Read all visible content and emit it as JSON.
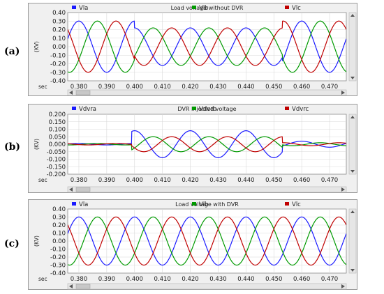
{
  "panel_labels": [
    "(a)",
    "(b)",
    "(c)"
  ],
  "x_axis_label": "sec",
  "chart_data": [
    {
      "type": "line",
      "title": "Load voltage without DVR",
      "ylabel": "(KV)",
      "xlabel": "sec",
      "xlim": [
        0.376,
        0.476
      ],
      "ylim": [
        -0.4,
        0.4
      ],
      "xticks": [
        "0.380",
        "0.390",
        "0.400",
        "0.410",
        "0.420",
        "0.430",
        "0.440",
        "0.450",
        "0.460",
        "0.470"
      ],
      "yticks": [
        "0.40",
        "0.30",
        "0.20",
        "0.10",
        "0.00",
        "-0.10",
        "-0.20",
        "-0.30",
        "-0.40"
      ],
      "frequency_hz": 50,
      "series": [
        {
          "name": "Vla",
          "color": "#1a1aff",
          "phase_deg": 90,
          "segments": [
            {
              "start": 0.376,
              "end": 0.4,
              "amp": 0.3
            },
            {
              "start": 0.4,
              "end": 0.453,
              "amp": 0.22
            },
            {
              "start": 0.453,
              "end": 0.476,
              "amp": 0.3
            }
          ]
        },
        {
          "name": "Vlb",
          "color": "#009a00",
          "phase_deg": -30,
          "segments": [
            {
              "start": 0.376,
              "end": 0.4,
              "amp": 0.3
            },
            {
              "start": 0.4,
              "end": 0.453,
              "amp": 0.22
            },
            {
              "start": 0.453,
              "end": 0.476,
              "amp": 0.3
            }
          ]
        },
        {
          "name": "Vlc",
          "color": "#c00000",
          "phase_deg": 210,
          "segments": [
            {
              "start": 0.376,
              "end": 0.4,
              "amp": 0.3
            },
            {
              "start": 0.4,
              "end": 0.453,
              "amp": 0.22
            },
            {
              "start": 0.453,
              "end": 0.476,
              "amp": 0.3
            }
          ]
        }
      ]
    },
    {
      "type": "line",
      "title": "DVR Injected voltage",
      "ylabel": "(KV)",
      "xlabel": "sec",
      "xlim": [
        0.376,
        0.476
      ],
      "ylim": [
        -0.2,
        0.2
      ],
      "xticks": [
        "0.380",
        "0.390",
        "0.400",
        "0.410",
        "0.420",
        "0.430",
        "0.440",
        "0.450",
        "0.460",
        "0.470"
      ],
      "yticks": [
        "0.200",
        "0.150",
        "0.100",
        "0.050",
        "0.000",
        "-0.050",
        "-0.100",
        "-0.150",
        "-0.200"
      ],
      "frequency_hz": 50,
      "series": [
        {
          "name": "Vdvra",
          "color": "#1a1aff",
          "phase_deg": 90,
          "segments": [
            {
              "start": 0.376,
              "end": 0.399,
              "amp": 0.005
            },
            {
              "start": 0.399,
              "end": 0.453,
              "amp": 0.09
            },
            {
              "start": 0.453,
              "end": 0.476,
              "amp": 0.02
            }
          ]
        },
        {
          "name": "Vdvrb",
          "color": "#009a00",
          "phase_deg": -30,
          "segments": [
            {
              "start": 0.376,
              "end": 0.399,
              "amp": 0.005
            },
            {
              "start": 0.399,
              "end": 0.453,
              "amp": 0.05
            },
            {
              "start": 0.453,
              "end": 0.476,
              "amp": 0.01
            }
          ]
        },
        {
          "name": "Vdvrc",
          "color": "#c00000",
          "phase_deg": 210,
          "segments": [
            {
              "start": 0.376,
              "end": 0.399,
              "amp": 0.005
            },
            {
              "start": 0.399,
              "end": 0.453,
              "amp": 0.05
            },
            {
              "start": 0.453,
              "end": 0.476,
              "amp": 0.01
            }
          ]
        }
      ]
    },
    {
      "type": "line",
      "title": "Load voltage with DVR",
      "ylabel": "(KV)",
      "xlabel": "sec",
      "xlim": [
        0.376,
        0.476
      ],
      "ylim": [
        -0.4,
        0.4
      ],
      "xticks": [
        "0.380",
        "0.390",
        "0.400",
        "0.410",
        "0.420",
        "0.430",
        "0.440",
        "0.450",
        "0.460",
        "0.470"
      ],
      "yticks": [
        "0.40",
        "0.30",
        "0.20",
        "0.10",
        "0.00",
        "-0.10",
        "-0.20",
        "-0.30",
        "-0.40"
      ],
      "frequency_hz": 50,
      "series": [
        {
          "name": "Vla",
          "color": "#1a1aff",
          "phase_deg": 90,
          "segments": [
            {
              "start": 0.376,
              "end": 0.476,
              "amp": 0.3
            }
          ]
        },
        {
          "name": "Vlb",
          "color": "#009a00",
          "phase_deg": -30,
          "segments": [
            {
              "start": 0.376,
              "end": 0.476,
              "amp": 0.3
            }
          ]
        },
        {
          "name": "Vlc",
          "color": "#c00000",
          "phase_deg": 210,
          "segments": [
            {
              "start": 0.376,
              "end": 0.476,
              "amp": 0.3
            }
          ]
        }
      ]
    }
  ]
}
